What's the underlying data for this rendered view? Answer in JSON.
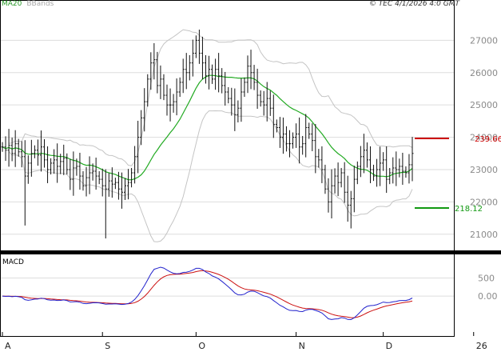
{
  "header": {
    "ma_label": "MA20",
    "bb_label": "BBands",
    "timestamp": "© TEC 4/1/2026 4:0 GMT"
  },
  "colors": {
    "ma": "#22aa22",
    "bands": "#c4c4c4",
    "price": "#111111",
    "resistance": "#cc0000",
    "support": "#119911",
    "macd": "#2222cc",
    "signal": "#cc1111",
    "grid": "#dddddd"
  },
  "chart_data": [
    {
      "type": "ohlc",
      "ylim": [
        20500,
        27900
      ],
      "yticks": [
        "21000",
        "22000",
        "23000",
        "24000",
        "25000",
        "26000",
        "27000"
      ],
      "xticks": [
        "A",
        "S",
        "O",
        "N",
        "D",
        "26"
      ],
      "xtick_index": [
        0,
        31,
        60,
        91,
        118,
        146
      ],
      "levels": [
        {
          "name": "resistance",
          "value": 23966,
          "label": "239.66"
        },
        {
          "name": "support",
          "value": 21812,
          "label": "218.12"
        }
      ],
      "close": [
        23700,
        23600,
        23750,
        23500,
        23800,
        23550,
        23400,
        22800,
        23200,
        23500,
        23600,
        23450,
        23700,
        23300,
        23000,
        23200,
        23300,
        23100,
        23250,
        23350,
        23000,
        22700,
        23050,
        23100,
        22800,
        22500,
        22750,
        22900,
        22950,
        22800,
        22700,
        22500,
        22400,
        22650,
        22550,
        22600,
        22400,
        22300,
        22500,
        22600,
        22900,
        23400,
        24000,
        24600,
        25100,
        25800,
        26300,
        26400,
        25600,
        25800,
        25300,
        25000,
        25000,
        25100,
        25400,
        25700,
        26100,
        26000,
        26300,
        26600,
        27000,
        26600,
        26300,
        25900,
        26100,
        25800,
        26100,
        25900,
        25600,
        25400,
        25200,
        25000,
        24700,
        24900,
        25400,
        25700,
        26200,
        26000,
        25700,
        25300,
        25100,
        25000,
        25200,
        24900,
        24400,
        24300,
        24000,
        24100,
        23800,
        23800,
        24000,
        24100,
        23700,
        23800,
        24300,
        24100,
        23900,
        23400,
        23300,
        23000,
        22400,
        22000,
        22500,
        22800,
        22600,
        22900,
        22300,
        21900,
        22100,
        22700,
        23100,
        23400,
        23600,
        23300,
        23000,
        22800,
        23000,
        23200,
        23300,
        22700,
        22900,
        23050,
        23000,
        23100,
        22950,
        22900,
        23150,
        23500
      ]
    },
    {
      "type": "line",
      "ylim": [
        -1100,
        1150
      ],
      "yticks": [
        "500",
        "0.00"
      ],
      "series": [
        {
          "name": "MACD"
        }
      ]
    }
  ]
}
